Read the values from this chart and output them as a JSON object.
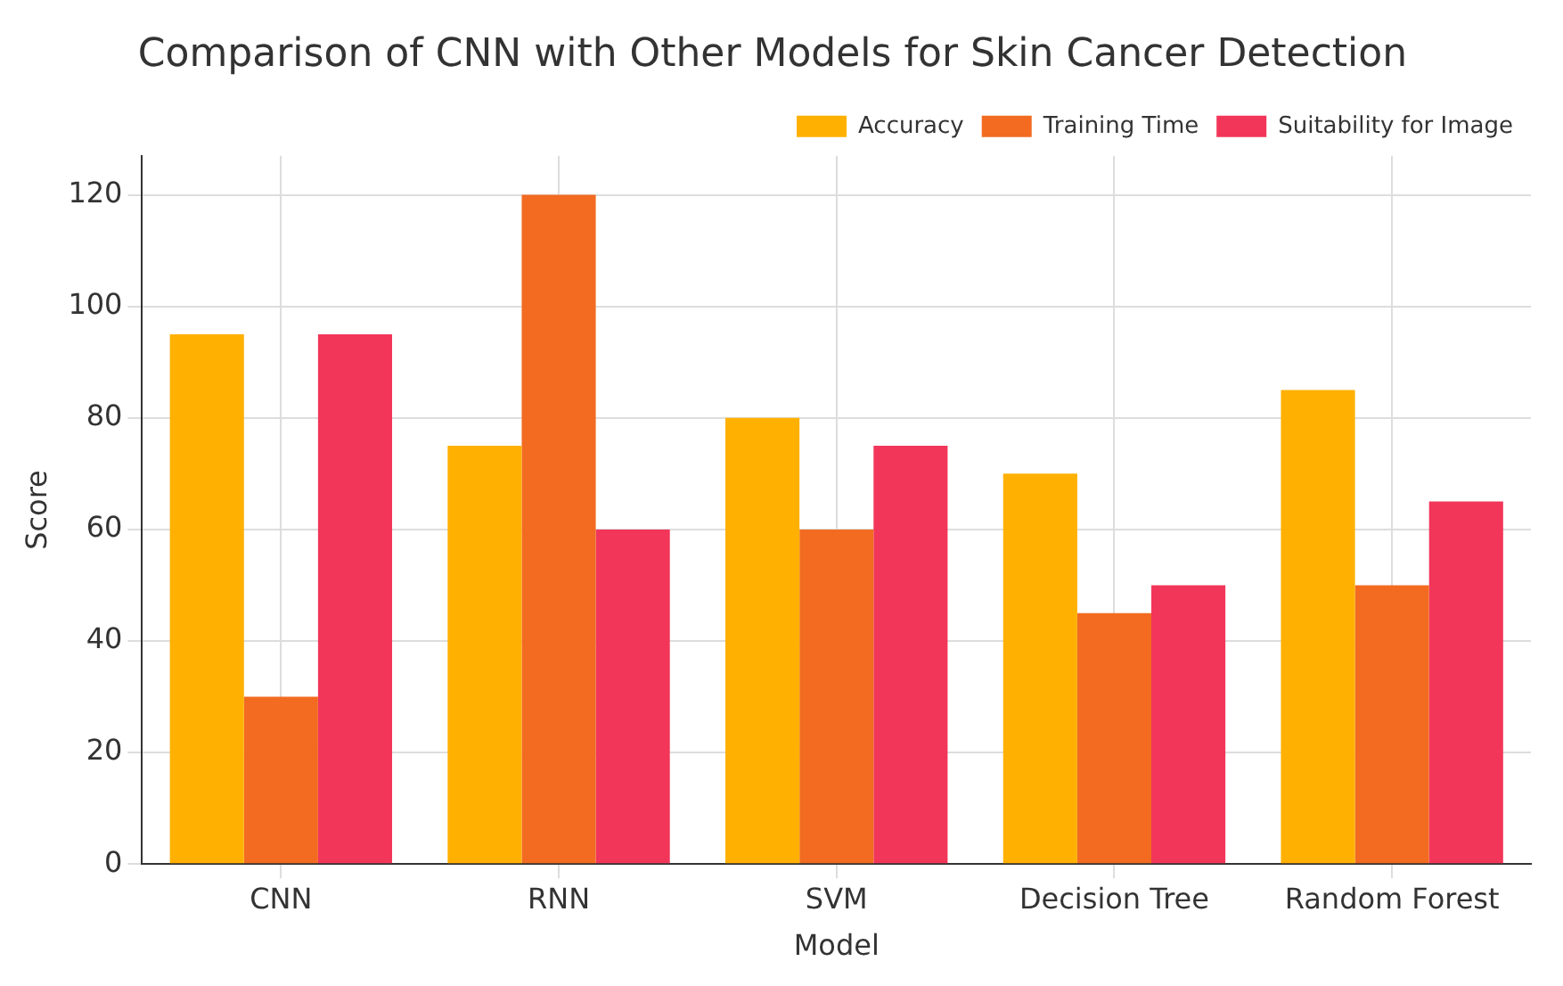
{
  "chart_data": {
    "type": "bar",
    "title": "Comparison of CNN with Other Models for Skin Cancer Detection",
    "xlabel": "Model",
    "ylabel": "Score",
    "categories": [
      "CNN",
      "RNN",
      "SVM",
      "Decision Tree",
      "Random Forest"
    ],
    "series": [
      {
        "name": "Accuracy",
        "color": "#ffb000",
        "values": [
          95,
          75,
          80,
          70,
          85
        ]
      },
      {
        "name": "Training Time",
        "color": "#f26b21",
        "values": [
          30,
          120,
          60,
          45,
          50
        ]
      },
      {
        "name": "Suitability for Image",
        "color": "#f2365a",
        "values": [
          95,
          60,
          75,
          50,
          65
        ]
      }
    ],
    "ylim": [
      0,
      127
    ],
    "yticks": [
      0,
      20,
      40,
      60,
      80,
      100,
      120
    ],
    "grid": true,
    "legend": "top right"
  }
}
